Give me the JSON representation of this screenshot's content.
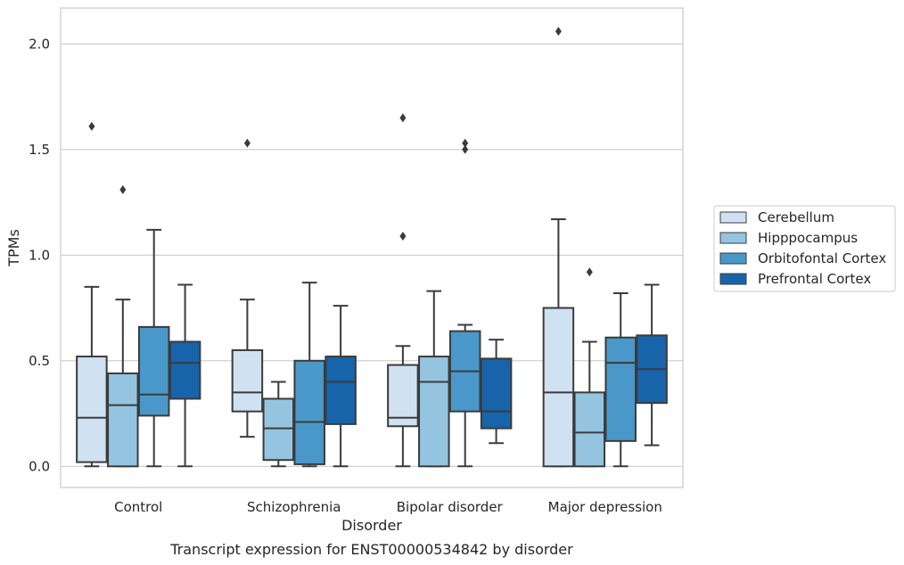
{
  "chart_data": {
    "type": "box",
    "title": "",
    "caption": "Transcript expression for ENST00000534842 by disorder",
    "xlabel": "Disorder",
    "ylabel": "TPMs",
    "ylim": [
      -0.1,
      2.17
    ],
    "yticks": [
      "0.0",
      "0.5",
      "1.0",
      "1.5",
      "2.0"
    ],
    "grid": "horizontal",
    "legend_position": "right",
    "categories": [
      "Control",
      "Schizophrenia",
      "Bipolar disorder",
      "Major depression"
    ],
    "series": [
      {
        "name": "Cerebellum",
        "color": "#d0e1f2",
        "boxes": [
          {
            "whislo": 0.0,
            "q1": 0.02,
            "med": 0.23,
            "q3": 0.52,
            "whishi": 0.85,
            "fliers": [
              1.61
            ]
          },
          {
            "whislo": 0.14,
            "q1": 0.26,
            "med": 0.35,
            "q3": 0.55,
            "whishi": 0.79,
            "fliers": [
              1.53
            ]
          },
          {
            "whislo": 0.0,
            "q1": 0.19,
            "med": 0.23,
            "q3": 0.48,
            "whishi": 0.57,
            "fliers": [
              1.09,
              1.65
            ]
          },
          {
            "whislo": 0.0,
            "q1": 0.0,
            "med": 0.35,
            "q3": 0.75,
            "whishi": 1.17,
            "fliers": [
              2.06
            ]
          }
        ]
      },
      {
        "name": "Hipppocampus",
        "color": "#94c4df",
        "boxes": [
          {
            "whislo": 0.0,
            "q1": 0.0,
            "med": 0.29,
            "q3": 0.44,
            "whishi": 0.79,
            "fliers": [
              1.31
            ]
          },
          {
            "whislo": 0.0,
            "q1": 0.03,
            "med": 0.18,
            "q3": 0.32,
            "whishi": 0.4,
            "fliers": []
          },
          {
            "whislo": 0.0,
            "q1": 0.0,
            "med": 0.4,
            "q3": 0.52,
            "whishi": 0.83,
            "fliers": []
          },
          {
            "whislo": 0.0,
            "q1": 0.0,
            "med": 0.16,
            "q3": 0.35,
            "whishi": 0.59,
            "fliers": [
              0.92
            ]
          }
        ]
      },
      {
        "name": "Orbitofontal Cortex",
        "color": "#4a98c9",
        "boxes": [
          {
            "whislo": 0.0,
            "q1": 0.24,
            "med": 0.34,
            "q3": 0.66,
            "whishi": 1.12,
            "fliers": []
          },
          {
            "whislo": 0.0,
            "q1": 0.01,
            "med": 0.21,
            "q3": 0.5,
            "whishi": 0.87,
            "fliers": []
          },
          {
            "whislo": 0.0,
            "q1": 0.26,
            "med": 0.45,
            "q3": 0.64,
            "whishi": 0.67,
            "fliers": [
              1.5,
              1.53
            ]
          },
          {
            "whislo": 0.0,
            "q1": 0.12,
            "med": 0.49,
            "q3": 0.61,
            "whishi": 0.82,
            "fliers": []
          }
        ]
      },
      {
        "name": "Prefrontal Cortex",
        "color": "#1764ab",
        "boxes": [
          {
            "whislo": 0.0,
            "q1": 0.32,
            "med": 0.49,
            "q3": 0.59,
            "whishi": 0.86,
            "fliers": []
          },
          {
            "whislo": 0.0,
            "q1": 0.2,
            "med": 0.4,
            "q3": 0.52,
            "whishi": 0.76,
            "fliers": []
          },
          {
            "whislo": 0.11,
            "q1": 0.18,
            "med": 0.26,
            "q3": 0.51,
            "whishi": 0.6,
            "fliers": []
          },
          {
            "whislo": 0.1,
            "q1": 0.3,
            "med": 0.46,
            "q3": 0.62,
            "whishi": 0.86,
            "fliers": []
          }
        ]
      }
    ]
  }
}
